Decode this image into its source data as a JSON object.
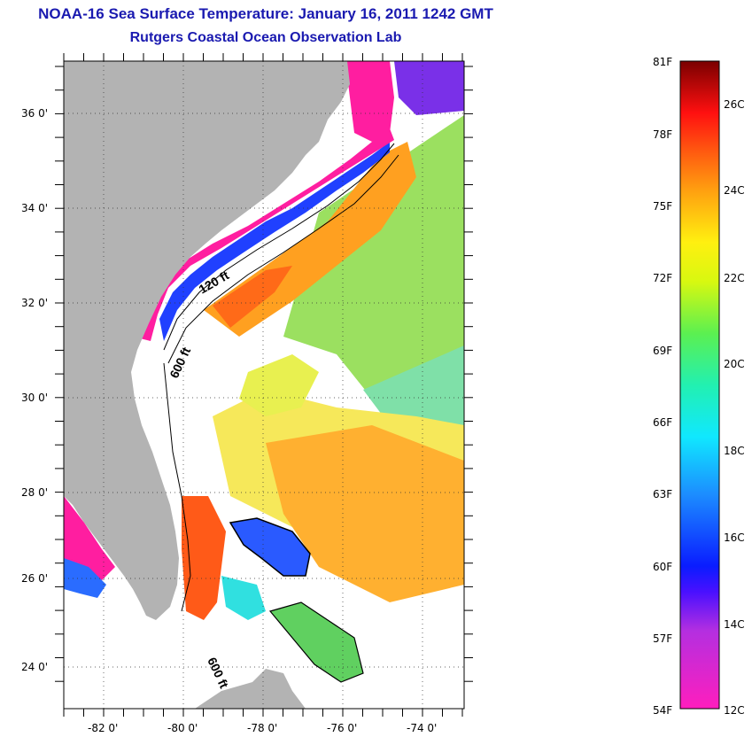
{
  "header": {
    "title": "NOAA-16 Sea Surface Temperature:  January 16, 2011 1242 GMT",
    "subtitle": "Rutgers Coastal Ocean Observation Lab"
  },
  "map": {
    "lon_range": [
      -83,
      -73
    ],
    "lat_range": [
      23,
      37
    ],
    "lat_ticks": [
      "36 0'",
      "34 0'",
      "32 0'",
      "30 0'",
      "28 0'",
      "26 0'",
      "24 0'"
    ],
    "lon_ticks": [
      "-82 0'",
      "-80 0'",
      "-78 0'",
      "-76 0'",
      "-74 0'"
    ],
    "contour_labels": [
      "120 ft",
      "600 ft",
      "600 ft"
    ],
    "colors": {
      "land": "#b3b3b3",
      "cloud": "#ffffff",
      "coldest": "#ff1ea0",
      "warm": "#ff7a10"
    }
  },
  "colorbar": {
    "f_labels": [
      "81F",
      "78F",
      "75F",
      "72F",
      "69F",
      "66F",
      "63F",
      "60F",
      "57F",
      "54F"
    ],
    "c_labels": [
      "26C",
      "24C",
      "22C",
      "20C",
      "18C",
      "16C",
      "14C",
      "12C"
    ]
  }
}
